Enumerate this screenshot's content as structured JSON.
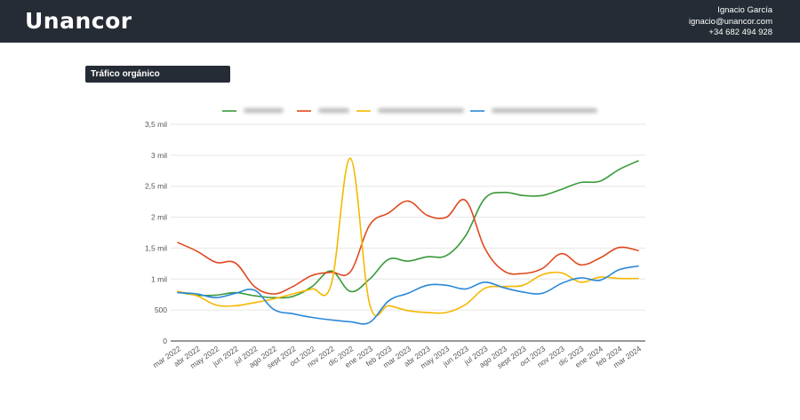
{
  "header": {
    "logo": "Unancor",
    "contact_name": "Ignacio García",
    "contact_email": "ignacio@unancor.com",
    "contact_phone": "+34 682 494 928"
  },
  "section": {
    "title": "Tráfico orgánico"
  },
  "colors": {
    "header_bg": "#252c35",
    "series": [
      "#3a9a3a",
      "#e0491f",
      "#f5b800",
      "#2b88d8"
    ]
  },
  "chart_data": {
    "type": "line",
    "categories": [
      "mar 2022",
      "abr 2022",
      "may 2022",
      "jun 2022",
      "jul 2022",
      "ago 2022",
      "sept 2022",
      "oct 2022",
      "nov 2022",
      "dic 2022",
      "ene 2023",
      "feb 2023",
      "mar 2023",
      "abr 2023",
      "may 2023",
      "jun 2023",
      "jul 2023",
      "ago 2023",
      "sept 2023",
      "oct 2023",
      "nov 2023",
      "dic 2023",
      "ene 2024",
      "feb 2024",
      "mar 2024"
    ],
    "ylim": [
      0,
      3500
    ],
    "yticks": [
      0,
      500,
      1000,
      1500,
      2000,
      2500,
      3000,
      3500
    ],
    "ytick_labels": [
      "0",
      "500",
      "1 mil",
      "1,5 mil",
      "2 mil",
      "2,5 mil",
      "3 mil",
      "3,5 mil"
    ],
    "legend_position": "top",
    "legend_names_obscured": true,
    "series": [
      {
        "color": "#3a9a3a",
        "values": [
          790,
          740,
          740,
          780,
          730,
          700,
          720,
          880,
          1130,
          800,
          1000,
          1320,
          1290,
          1360,
          1380,
          1700,
          2300,
          2400,
          2350,
          2350,
          2450,
          2560,
          2580,
          2770,
          2910
        ]
      },
      {
        "color": "#e0491f",
        "values": [
          1590,
          1450,
          1270,
          1260,
          880,
          760,
          880,
          1060,
          1110,
          1120,
          1870,
          2070,
          2260,
          2030,
          2000,
          2270,
          1500,
          1130,
          1090,
          1170,
          1410,
          1230,
          1340,
          1510,
          1460
        ]
      },
      {
        "color": "#f5b800",
        "values": [
          800,
          730,
          580,
          570,
          620,
          680,
          760,
          840,
          920,
          2950,
          600,
          570,
          490,
          460,
          460,
          590,
          850,
          880,
          900,
          1070,
          1100,
          950,
          1030,
          1010,
          1010
        ]
      },
      {
        "color": "#2b88d8",
        "values": [
          780,
          760,
          700,
          770,
          820,
          510,
          440,
          380,
          340,
          310,
          300,
          650,
          770,
          900,
          900,
          840,
          950,
          860,
          790,
          770,
          930,
          1020,
          980,
          1150,
          1210
        ]
      }
    ]
  }
}
